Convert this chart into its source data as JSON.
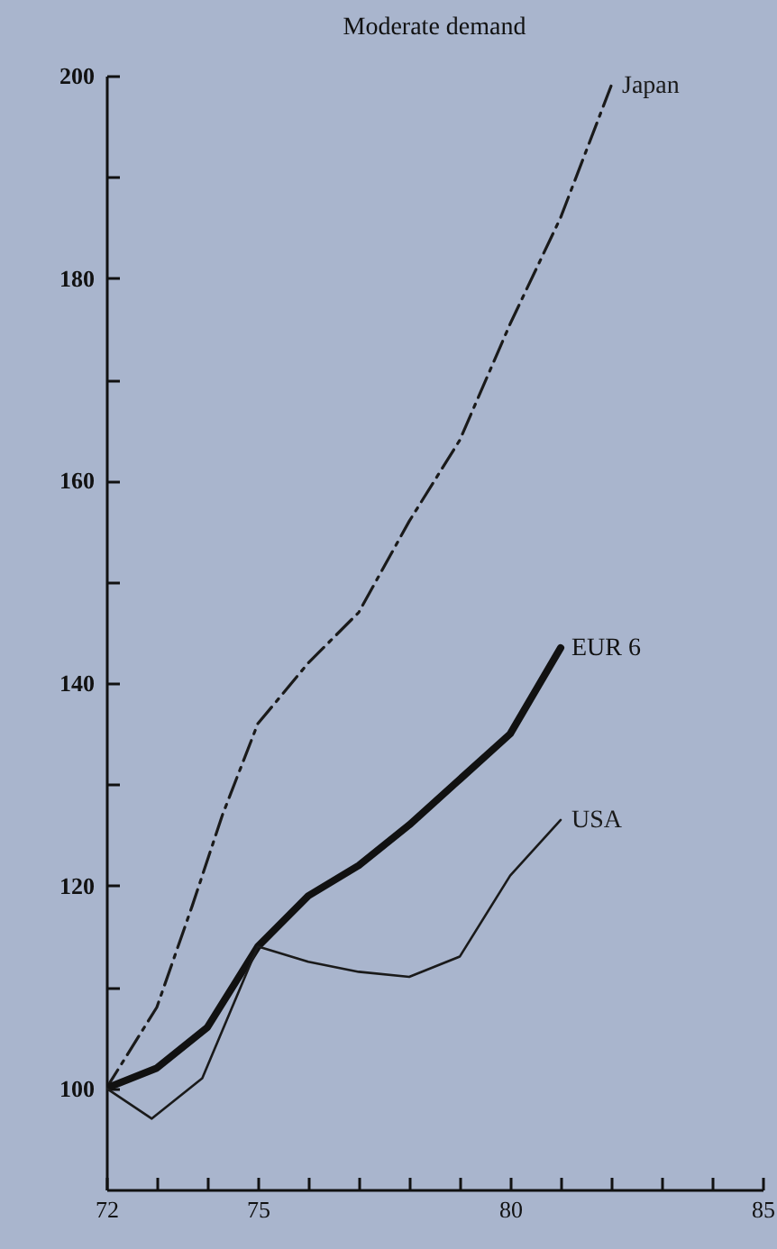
{
  "chart_data": {
    "type": "line",
    "title": "Moderate demand",
    "series": [
      {
        "name": "Japan",
        "color": "#1a1a1a",
        "line_style": "dashed",
        "x": [
          72,
          73,
          73.7,
          74.3,
          75,
          76,
          77,
          78,
          79,
          80,
          81,
          82
        ],
        "values": [
          100,
          108,
          118,
          127,
          136,
          142,
          147,
          156,
          164,
          175.5,
          186,
          199
        ]
      },
      {
        "name": "EUR 6",
        "color": "#111111",
        "line_style": "solid",
        "x": [
          72,
          73,
          74,
          75,
          76,
          77,
          78,
          79,
          80,
          81
        ],
        "values": [
          100,
          102,
          106,
          114,
          119,
          122,
          126,
          130.5,
          135,
          143.5
        ]
      },
      {
        "name": "USA",
        "color": "#1a1a1a",
        "line_style": "solid",
        "x": [
          72,
          72.6,
          72.9,
          73.9,
          75,
          76,
          77,
          78,
          79,
          80,
          81
        ],
        "values": [
          100,
          98,
          97,
          101,
          114,
          112.5,
          111.5,
          111,
          113,
          121,
          126.5
        ]
      }
    ],
    "xlim": [
      72,
      85
    ],
    "xticks": [
      72,
      {
        "value": 73,
        "label": null
      },
      {
        "value": 74,
        "label": null
      },
      75,
      {
        "value": 76,
        "label": null
      },
      {
        "value": 77,
        "label": null
      },
      {
        "value": 78,
        "label": null
      },
      {
        "value": 79,
        "label": null
      },
      80,
      {
        "value": 81,
        "label": null
      },
      {
        "value": 82,
        "label": null
      },
      {
        "value": 83,
        "label": null
      },
      {
        "value": 84,
        "label": null
      },
      85
    ],
    "ylim": [
      90,
      200
    ],
    "yticks": [
      100,
      {
        "value": 110,
        "label": null
      },
      120,
      {
        "value": 130,
        "label": null
      },
      140,
      {
        "value": 150,
        "label": null
      },
      160,
      {
        "value": 170,
        "label": null
      },
      180,
      {
        "value": 190,
        "label": null
      },
      200
    ],
    "grid": false
  }
}
